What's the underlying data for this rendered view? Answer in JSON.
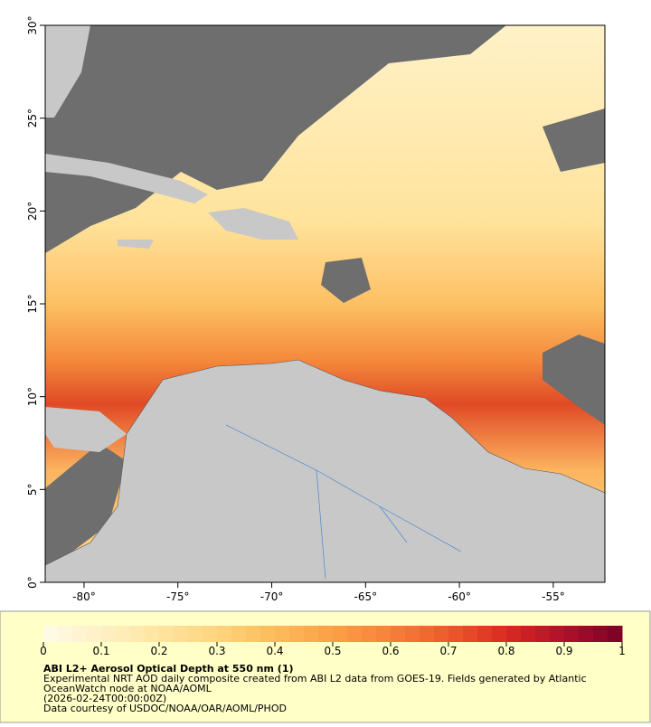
{
  "map": {
    "xlim": [
      -82.07,
      -52.25
    ],
    "ylim": [
      0,
      30
    ],
    "xticks": [
      {
        "value": -80,
        "label": "-80°"
      },
      {
        "value": -75,
        "label": "-75°"
      },
      {
        "value": -70,
        "label": "-70°"
      },
      {
        "value": -65,
        "label": "-65°"
      },
      {
        "value": -60,
        "label": "-60°"
      },
      {
        "value": -55,
        "label": "-55°"
      }
    ],
    "yticks": [
      {
        "value": 0,
        "label": "0°"
      },
      {
        "value": 5,
        "label": "5°"
      },
      {
        "value": 10,
        "label": "10°"
      },
      {
        "value": 15,
        "label": "15°"
      },
      {
        "value": 20,
        "label": "20°"
      },
      {
        "value": 25,
        "label": "25°"
      },
      {
        "value": 30,
        "label": "30°"
      }
    ]
  },
  "colorbar": {
    "lim": [
      0,
      1
    ],
    "ticks": [
      0,
      0.1,
      0.2,
      0.3,
      0.4,
      0.5,
      0.6,
      0.7,
      0.8,
      0.9,
      1
    ],
    "colors": [
      "#fffbe8",
      "#fff0c4",
      "#ffe4a0",
      "#ffd47c",
      "#fdbb5c",
      "#fca046",
      "#f8803a",
      "#ee5a2c",
      "#d92a22",
      "#b0102a",
      "#7a0026"
    ]
  },
  "caption": {
    "title": "ABI L2+ Aerosol Optical Depth at 550 nm (1)",
    "lines": [
      "Experimental NRT AOD daily composite created from ABI L2 data from GOES-19. Fields generated by Atlantic",
      "OceanWatch node at NOAA/AOML",
      "(2026-02-24T00:00:00Z)",
      "Data courtesy of USDOC/NOAA/OAR/AOML/PHOD"
    ]
  }
}
